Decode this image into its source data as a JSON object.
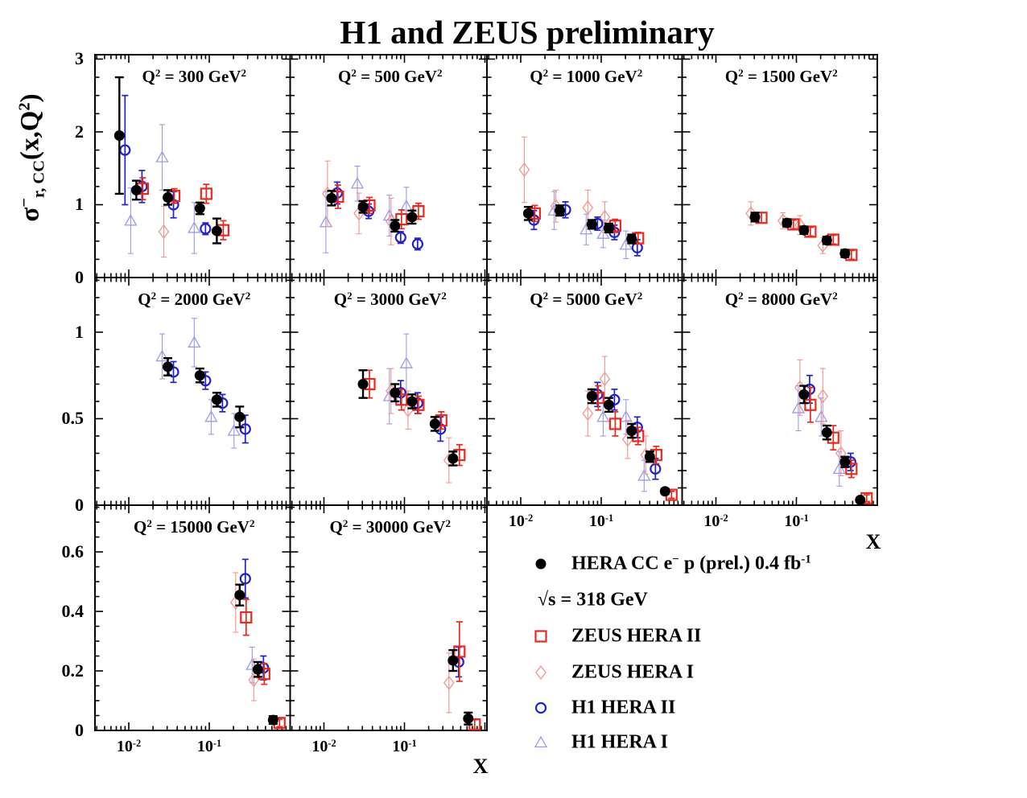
{
  "title": "H1 and ZEUS preliminary",
  "ylabel": "σ^{−}_{r, CC}(x,Q^{2})",
  "xlabel": "X",
  "background_color": "#ffffff",
  "chart_data": {
    "type": "scatter",
    "x_scale": "log",
    "x_tick_labels": [
      "10^{-2}",
      "10^{-1}"
    ],
    "x_tick_values": [
      0.01,
      0.1
    ],
    "x_range": [
      0.0038,
      1.0
    ],
    "grid": "off",
    "rows": [
      {
        "ymax": 3.06,
        "major_ticks": [
          0,
          1,
          2,
          3
        ],
        "tick_labels": [
          "0",
          "1",
          "2",
          "3"
        ],
        "minor_step": 0.25
      },
      {
        "ymax": 1.316,
        "major_ticks": [
          0,
          0.5,
          1
        ],
        "tick_labels": [
          "0",
          "0.5",
          "1"
        ],
        "minor_step": 0.1
      },
      {
        "ymax": 0.757,
        "major_ticks": [
          0,
          0.2,
          0.4,
          0.6
        ],
        "tick_labels": [
          "0",
          "0.2",
          "0.4",
          "0.6"
        ],
        "minor_step": 0.05
      }
    ],
    "series_meta": {
      "hera": {
        "marker": "filled-circle",
        "color": "#000000",
        "xoff": -2
      },
      "zeus_hera_2": {
        "marker": "open-square",
        "color": "#e8291f",
        "xoff": 6
      },
      "zeus_hera_1": {
        "marker": "open-diamond",
        "color": "#f2958e",
        "xoff": -7
      },
      "h1_hera_2": {
        "marker": "open-circle",
        "color": "#2121cd",
        "xoff": 5
      },
      "h1_hera_1": {
        "marker": "open-triangle",
        "color": "#9b9bea",
        "xoff": -9
      }
    },
    "panels": [
      {
        "label": "Q^{2} = 300 GeV^{2}",
        "q2": 300,
        "row": 0,
        "col": 0,
        "series": {
          "hera": {
            "x": [
              0.008,
              0.013,
              0.032,
              0.08,
              0.13
            ],
            "y": [
              1.95,
              1.2,
              1.1,
              0.95,
              0.64
            ],
            "yerr": [
              0.8,
              0.13,
              0.1,
              0.08,
              0.17
            ]
          },
          "zeus_hera_2": {
            "x": [
              0.013,
              0.032,
              0.08,
              0.13
            ],
            "y": [
              1.22,
              1.12,
              1.15,
              0.65
            ],
            "yerr": [
              0.15,
              0.1,
              0.13,
              0.13
            ]
          },
          "zeus_hera_1": {
            "x": [
              0.032
            ],
            "y": [
              0.63
            ],
            "yerr": [
              0.35
            ]
          },
          "h1_hera_2": {
            "x": [
              0.008,
              0.013,
              0.032,
              0.08
            ],
            "y": [
              1.75,
              1.25,
              1.0,
              0.67
            ],
            "yerr": [
              0.75,
              0.22,
              0.18,
              0.08
            ]
          },
          "h1_hera_1": {
            "x": [
              0.013,
              0.032,
              0.08
            ],
            "y": [
              0.78,
              1.65,
              0.68
            ],
            "yerr": [
              0.45,
              0.45,
              0.35
            ]
          }
        }
      },
      {
        "label": "Q^{2} = 500 GeV^{2}",
        "q2": 500,
        "row": 0,
        "col": 1,
        "series": {
          "hera": {
            "x": [
              0.013,
              0.032,
              0.08,
              0.13
            ],
            "y": [
              1.09,
              0.97,
              0.71,
              0.83
            ],
            "yerr": [
              0.1,
              0.08,
              0.08,
              0.09
            ]
          },
          "zeus_hera_2": {
            "x": [
              0.013,
              0.032,
              0.08,
              0.13
            ],
            "y": [
              1.11,
              0.99,
              0.8,
              0.91
            ],
            "yerr": [
              0.16,
              0.11,
              0.13,
              0.11
            ]
          },
          "zeus_hera_1": {
            "x": [
              0.013,
              0.032,
              0.08
            ],
            "y": [
              1.15,
              0.88,
              0.77
            ],
            "yerr": [
              0.45,
              0.28,
              0.32
            ]
          },
          "h1_hera_2": {
            "x": [
              0.013,
              0.032,
              0.08,
              0.13
            ],
            "y": [
              1.16,
              0.91,
              0.55,
              0.46
            ],
            "yerr": [
              0.15,
              0.1,
              0.08,
              0.08
            ]
          },
          "h1_hera_1": {
            "x": [
              0.013,
              0.032,
              0.08,
              0.13
            ],
            "y": [
              0.76,
              1.29,
              0.85,
              0.98
            ],
            "yerr": [
              0.42,
              0.24,
              0.28,
              0.26
            ]
          }
        }
      },
      {
        "label": "Q^{2} = 1000 GeV^{2}",
        "q2": 1000,
        "row": 0,
        "col": 2,
        "series": {
          "hera": {
            "x": [
              0.013,
              0.032,
              0.08,
              0.13,
              0.25
            ],
            "y": [
              0.88,
              0.92,
              0.73,
              0.68,
              0.53
            ],
            "yerr": [
              0.09,
              0.07,
              0.06,
              0.06,
              0.06
            ]
          },
          "zeus_hera_2": {
            "x": [
              0.013,
              0.13,
              0.25
            ],
            "y": [
              0.88,
              0.71,
              0.54
            ],
            "yerr": [
              0.11,
              0.09,
              0.08
            ]
          },
          "zeus_hera_1": {
            "x": [
              0.013,
              0.032,
              0.08,
              0.13
            ],
            "y": [
              1.48,
              0.98,
              0.96,
              0.83
            ],
            "yerr": [
              0.45,
              0.22,
              0.24,
              0.21
            ]
          },
          "h1_hera_2": {
            "x": [
              0.013,
              0.032,
              0.08,
              0.13,
              0.25
            ],
            "y": [
              0.79,
              0.93,
              0.74,
              0.62,
              0.41
            ],
            "yerr": [
              0.13,
              0.11,
              0.09,
              0.1,
              0.11
            ]
          },
          "h1_hera_1": {
            "x": [
              0.032,
              0.08,
              0.13,
              0.25
            ],
            "y": [
              0.92,
              0.66,
              0.6,
              0.45
            ],
            "yerr": [
              0.26,
              0.21,
              0.19,
              0.19
            ]
          }
        }
      },
      {
        "label": "Q^{2} = 1500 GeV^{2}",
        "q2": 1500,
        "row": 0,
        "col": 3,
        "series": {
          "hera": {
            "x": [
              0.032,
              0.08,
              0.13,
              0.25,
              0.42
            ],
            "y": [
              0.83,
              0.75,
              0.65,
              0.51,
              0.33
            ],
            "yerr": [
              0.06,
              0.05,
              0.05,
              0.05,
              0.05
            ]
          },
          "zeus_hera_2": {
            "x": [
              0.032,
              0.08,
              0.13,
              0.25,
              0.42
            ],
            "y": [
              0.82,
              0.73,
              0.63,
              0.52,
              0.31
            ],
            "yerr": [
              0.07,
              0.06,
              0.06,
              0.06,
              0.06
            ]
          },
          "zeus_hera_1": {
            "x": [
              0.032,
              0.08,
              0.13,
              0.25
            ],
            "y": [
              0.88,
              0.78,
              0.72,
              0.44
            ],
            "yerr": [
              0.16,
              0.11,
              0.13,
              0.11
            ]
          }
        }
      },
      {
        "label": "Q^{2} = 2000 GeV^{2}",
        "q2": 2000,
        "row": 1,
        "col": 0,
        "series": {
          "hera": {
            "x": [
              0.032,
              0.08,
              0.13,
              0.25
            ],
            "y": [
              0.8,
              0.75,
              0.61,
              0.51
            ],
            "yerr": [
              0.05,
              0.04,
              0.04,
              0.06
            ]
          },
          "h1_hera_2": {
            "x": [
              0.032,
              0.08,
              0.13,
              0.25
            ],
            "y": [
              0.77,
              0.72,
              0.59,
              0.44
            ],
            "yerr": [
              0.06,
              0.05,
              0.05,
              0.08
            ]
          },
          "h1_hera_1": {
            "x": [
              0.032,
              0.08,
              0.13,
              0.25
            ],
            "y": [
              0.86,
              0.94,
              0.51,
              0.43
            ],
            "yerr": [
              0.13,
              0.14,
              0.1,
              0.1
            ]
          }
        }
      },
      {
        "label": "Q^{2} = 3000 GeV^{2}",
        "q2": 3000,
        "row": 1,
        "col": 1,
        "series": {
          "hera": {
            "x": [
              0.032,
              0.08,
              0.13,
              0.25,
              0.42
            ],
            "y": [
              0.7,
              0.65,
              0.6,
              0.47,
              0.27
            ],
            "yerr": [
              0.08,
              0.05,
              0.04,
              0.04,
              0.04
            ]
          },
          "zeus_hera_2": {
            "x": [
              0.032,
              0.08,
              0.13,
              0.25,
              0.42
            ],
            "y": [
              0.7,
              0.61,
              0.58,
              0.49,
              0.29
            ],
            "yerr": [
              0.08,
              0.06,
              0.05,
              0.05,
              0.06
            ]
          },
          "zeus_hera_1": {
            "x": [
              0.08,
              0.13,
              0.42
            ],
            "y": [
              0.66,
              0.55,
              0.26
            ],
            "yerr": [
              0.13,
              0.11,
              0.13
            ]
          },
          "h1_hera_2": {
            "x": [
              0.08,
              0.13,
              0.25
            ],
            "y": [
              0.65,
              0.59,
              0.44
            ],
            "yerr": [
              0.07,
              0.06,
              0.07
            ]
          },
          "h1_hera_1": {
            "x": [
              0.08,
              0.13
            ],
            "y": [
              0.63,
              0.82
            ],
            "yerr": [
              0.16,
              0.17
            ]
          }
        }
      },
      {
        "label": "Q^{2} = 5000 GeV^{2}",
        "q2": 5000,
        "row": 1,
        "col": 2,
        "series": {
          "hera": {
            "x": [
              0.08,
              0.13,
              0.25,
              0.42,
              0.65
            ],
            "y": [
              0.63,
              0.58,
              0.43,
              0.28,
              0.08
            ],
            "yerr": [
              0.04,
              0.04,
              0.04,
              0.03,
              0.015
            ]
          },
          "zeus_hera_2": {
            "x": [
              0.08,
              0.13,
              0.25,
              0.42,
              0.65
            ],
            "y": [
              0.62,
              0.47,
              0.4,
              0.29,
              0.06
            ],
            "yerr": [
              0.07,
              0.07,
              0.05,
              0.05,
              0.02
            ]
          },
          "zeus_hera_1": {
            "x": [
              0.08,
              0.13,
              0.25,
              0.42
            ],
            "y": [
              0.53,
              0.73,
              0.38,
              0.29
            ],
            "yerr": [
              0.13,
              0.13,
              0.11,
              0.11
            ]
          },
          "h1_hera_2": {
            "x": [
              0.08,
              0.13,
              0.25,
              0.42
            ],
            "y": [
              0.64,
              0.61,
              0.45,
              0.21
            ],
            "yerr": [
              0.07,
              0.06,
              0.06,
              0.06
            ]
          },
          "h1_hera_1": {
            "x": [
              0.13,
              0.25,
              0.42
            ],
            "y": [
              0.51,
              0.51,
              0.17
            ],
            "yerr": [
              0.11,
              0.1,
              0.09
            ]
          }
        }
      },
      {
        "label": "Q^{2} = 8000 GeV^{2}",
        "q2": 8000,
        "row": 1,
        "col": 3,
        "series": {
          "hera": {
            "x": [
              0.13,
              0.25,
              0.42,
              0.65
            ],
            "y": [
              0.64,
              0.42,
              0.25,
              0.03
            ],
            "yerr": [
              0.05,
              0.04,
              0.03,
              0.012
            ]
          },
          "zeus_hera_2": {
            "x": [
              0.13,
              0.25,
              0.42,
              0.65
            ],
            "y": [
              0.58,
              0.39,
              0.21,
              0.04
            ],
            "yerr": [
              0.1,
              0.07,
              0.05,
              0.02
            ]
          },
          "zeus_hera_1": {
            "x": [
              0.13,
              0.25,
              0.42
            ],
            "y": [
              0.68,
              0.63,
              0.3
            ],
            "yerr": [
              0.16,
              0.16,
              0.13
            ]
          },
          "h1_hera_2": {
            "x": [
              0.13,
              0.42
            ],
            "y": [
              0.67,
              0.25
            ],
            "yerr": [
              0.08,
              0.05
            ]
          },
          "h1_hera_1": {
            "x": [
              0.13,
              0.25,
              0.42
            ],
            "y": [
              0.56,
              0.51,
              0.21
            ],
            "yerr": [
              0.13,
              0.11,
              0.1
            ]
          }
        }
      },
      {
        "label": "Q^{2} = 15000 GeV^{2}",
        "q2": 15000,
        "row": 2,
        "col": 0,
        "series": {
          "hera": {
            "x": [
              0.25,
              0.42,
              0.65
            ],
            "y": [
              0.455,
              0.205,
              0.035
            ],
            "yerr": [
              0.035,
              0.025,
              0.013
            ]
          },
          "zeus_hera_2": {
            "x": [
              0.25,
              0.42,
              0.65
            ],
            "y": [
              0.38,
              0.19,
              0.025
            ],
            "yerr": [
              0.06,
              0.035,
              0.013
            ]
          },
          "zeus_hera_1": {
            "x": [
              0.25,
              0.42
            ],
            "y": [
              0.43,
              0.17
            ],
            "yerr": [
              0.1,
              0.07
            ]
          },
          "h1_hera_2": {
            "x": [
              0.25,
              0.42
            ],
            "y": [
              0.51,
              0.21
            ],
            "yerr": [
              0.065,
              0.04
            ]
          },
          "h1_hera_1": {
            "x": [
              0.42
            ],
            "y": [
              0.22
            ],
            "yerr": [
              0.06
            ]
          }
        }
      },
      {
        "label": "Q^{2} = 30000 GeV^{2}",
        "q2": 30000,
        "row": 2,
        "col": 1,
        "series": {
          "hera": {
            "x": [
              0.42,
              0.65
            ],
            "y": [
              0.235,
              0.04
            ],
            "yerr": [
              0.035,
              0.02
            ]
          },
          "zeus_hera_2": {
            "x": [
              0.42,
              0.65
            ],
            "y": [
              0.265,
              0.02
            ],
            "yerr": [
              0.1,
              0.016
            ]
          },
          "zeus_hera_1": {
            "x": [
              0.42
            ],
            "y": [
              0.16
            ],
            "yerr": [
              0.1
            ]
          },
          "h1_hera_2": {
            "x": [
              0.42
            ],
            "y": [
              0.23
            ],
            "yerr": [
              0.05
            ]
          }
        }
      }
    ]
  },
  "legend": {
    "items": [
      {
        "series": "hera",
        "label": "HERA CC e^{−} p (prel.) 0.4 fb^{-1}"
      },
      {
        "series": null,
        "label": "√s = 318 GeV"
      },
      {
        "series": "zeus_hera_2",
        "label": "ZEUS HERA II"
      },
      {
        "series": "zeus_hera_1",
        "label": "ZEUS HERA I"
      },
      {
        "series": "h1_hera_2",
        "label": "H1 HERA II"
      },
      {
        "series": "h1_hera_1",
        "label": "H1 HERA I"
      }
    ]
  }
}
